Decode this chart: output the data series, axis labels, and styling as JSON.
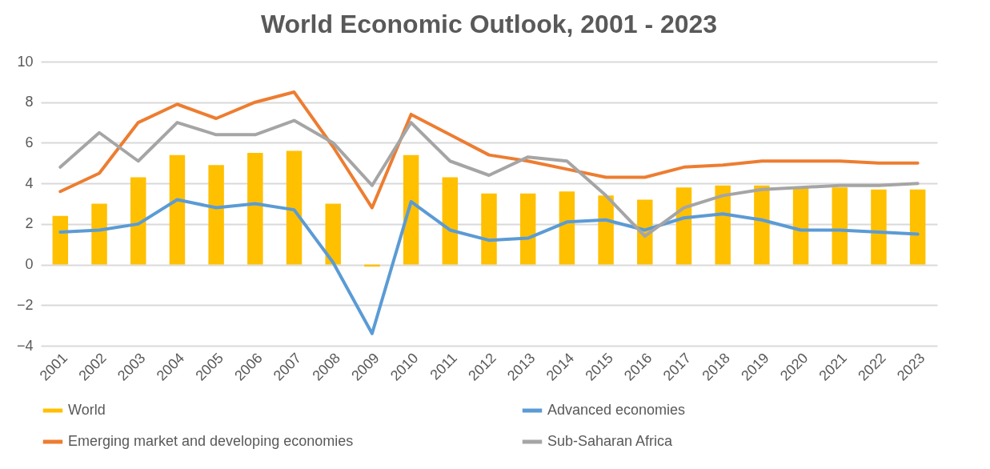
{
  "chart_data": {
    "type": "bar",
    "title": "World Economic Outlook, 2001 - 2023",
    "categories": [
      "2001",
      "2002",
      "2003",
      "2004",
      "2005",
      "2006",
      "2007",
      "2008",
      "2009",
      "2010",
      "2011",
      "2012",
      "2013",
      "2014",
      "2015",
      "2016",
      "2017",
      "2018",
      "2019",
      "2020",
      "2021",
      "2022",
      "2023"
    ],
    "series": [
      {
        "name": "World",
        "color": "#ffc000",
        "values": [
          2.4,
          3.0,
          4.3,
          5.4,
          4.9,
          5.5,
          5.6,
          3.0,
          -0.1,
          5.4,
          4.3,
          3.5,
          3.5,
          3.6,
          3.4,
          3.2,
          3.8,
          3.9,
          3.9,
          3.8,
          3.8,
          3.7,
          3.7
        ]
      },
      {
        "name": "Advanced economies",
        "type": "line",
        "color": "#5b9bd5",
        "values": [
          1.6,
          1.7,
          2.0,
          3.2,
          2.8,
          3.0,
          2.7,
          0.1,
          -3.4,
          3.1,
          1.7,
          1.2,
          1.3,
          2.1,
          2.2,
          1.7,
          2.3,
          2.5,
          2.2,
          1.7,
          1.7,
          1.6,
          1.5
        ]
      },
      {
        "name": "Emerging market and developing economies",
        "type": "line",
        "color": "#ed7d31",
        "values": [
          3.6,
          4.5,
          7.0,
          7.9,
          7.2,
          8.0,
          8.5,
          5.8,
          2.8,
          7.4,
          6.4,
          5.4,
          5.1,
          4.7,
          4.3,
          4.3,
          4.8,
          4.9,
          5.1,
          5.1,
          5.1,
          5.0,
          5.0
        ]
      },
      {
        "name": "Sub-Saharan Africa",
        "type": "line",
        "color": "#a5a5a5",
        "values": [
          4.8,
          6.5,
          5.1,
          7.0,
          6.4,
          6.4,
          7.1,
          6.0,
          3.9,
          7.0,
          5.1,
          4.4,
          5.3,
          5.1,
          3.4,
          1.4,
          2.8,
          3.4,
          3.7,
          3.8,
          3.9,
          3.9,
          4.0
        ]
      }
    ],
    "ylim": [
      -4,
      10
    ],
    "yticks": [
      -4,
      -2,
      0,
      2,
      4,
      6,
      8,
      10
    ],
    "grid": "y",
    "legend": "bottom",
    "line_style": "solid",
    "marker": "none"
  }
}
